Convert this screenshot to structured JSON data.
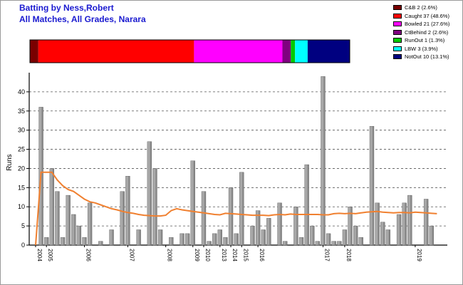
{
  "header": {
    "title": "Batting by Ness,Robert",
    "subtitle": "All Matches, All Grades, Narara"
  },
  "legend": {
    "items": [
      {
        "label": "C&B 2 (2.6%)",
        "color": "#7a0000",
        "count": 2
      },
      {
        "label": "Caught 37 (48.6%)",
        "color": "#ff0000",
        "count": 37
      },
      {
        "label": "Bowled 21 (27.6%)",
        "color": "#ff00ff",
        "count": 21
      },
      {
        "label": "CtBehind 2 (2.6%)",
        "color": "#800080",
        "count": 2
      },
      {
        "label": "RunOut 1 (1.3%)",
        "color": "#00cc00",
        "count": 1
      },
      {
        "label": "LBW 3 (3.9%)",
        "color": "#00ffff",
        "count": 3
      },
      {
        "label": "NotOut 10 (13.1%)",
        "color": "#000080",
        "count": 10
      }
    ]
  },
  "chart_data": {
    "type": "bar",
    "ylabel": "Runs",
    "ylim": [
      0,
      45
    ],
    "yticks": [
      0,
      5,
      10,
      15,
      20,
      25,
      30,
      35,
      40
    ],
    "grid": true,
    "series": [
      {
        "values": [
          0,
          36,
          2,
          20,
          14,
          2,
          13,
          8,
          5,
          2,
          11,
          0,
          1,
          0,
          4,
          0,
          14,
          18,
          0,
          4,
          0,
          27,
          20,
          4,
          0,
          2,
          0,
          3,
          3,
          22,
          0,
          14,
          1,
          3,
          4,
          2,
          15,
          3,
          19,
          0,
          5,
          9,
          4,
          7,
          0,
          11,
          1,
          0,
          10,
          2,
          21,
          5,
          1,
          44,
          3,
          1,
          1,
          4,
          10,
          5,
          2,
          0,
          31,
          11,
          6,
          4,
          0,
          8,
          11,
          13,
          0,
          0,
          12,
          5,
          0
        ]
      },
      {
        "values": [
          0,
          19,
          19,
          19,
          17,
          15.5,
          14.5,
          14,
          13,
          12,
          11.3,
          11,
          10.5,
          10,
          9.5,
          9.2,
          8.8,
          8.5,
          8.3,
          8,
          7.8,
          7.7,
          7.6,
          7.6,
          7.8,
          9,
          9.5,
          9.2,
          9,
          8.8,
          8.6,
          8.4,
          8.2,
          8,
          7.9,
          8.3,
          8.2,
          8.1,
          8,
          7.9,
          7.8,
          7.8,
          7.8,
          7.7,
          7.9,
          8,
          7.9,
          8.1,
          8,
          8,
          8,
          8,
          8,
          7.9,
          7.9,
          8.2,
          8.3,
          8.2,
          8.3,
          8.2,
          8.4,
          8.6,
          8.7,
          8.8,
          8.6,
          8.5,
          8.4,
          8.5,
          8.5,
          8.4,
          8.6,
          8.5,
          8.4,
          8.3,
          8.2
        ]
      }
    ],
    "year_labels": [
      {
        "label": "2004",
        "index": 0
      },
      {
        "label": "2005",
        "index": 2
      },
      {
        "label": "2006",
        "index": 9
      },
      {
        "label": "2007",
        "index": 17
      },
      {
        "label": "2008",
        "index": 24
      },
      {
        "label": "2009",
        "index": 29
      },
      {
        "label": "2010",
        "index": 31
      },
      {
        "label": "2013",
        "index": 34
      },
      {
        "label": "2014",
        "index": 36
      },
      {
        "label": "2015",
        "index": 38
      },
      {
        "label": "2016",
        "index": 41
      },
      {
        "label": "2017",
        "index": 53
      },
      {
        "label": "2018",
        "index": 57
      },
      {
        "label": "2019",
        "index": 70
      }
    ],
    "colors": {
      "bar": "#a8a8a8",
      "bar_edge": "#5a5a5a",
      "line": "#f08030",
      "grid": "#555555"
    }
  }
}
